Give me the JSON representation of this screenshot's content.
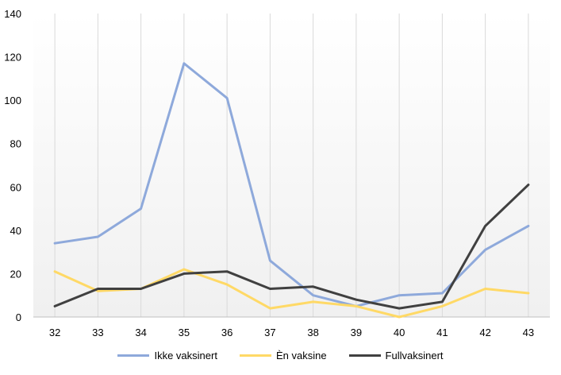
{
  "chart_data": {
    "type": "line",
    "categories": [
      "32",
      "33",
      "34",
      "35",
      "36",
      "37",
      "38",
      "39",
      "40",
      "41",
      "42",
      "43"
    ],
    "ylim": [
      0,
      140
    ],
    "yticks": [
      0,
      20,
      40,
      60,
      80,
      100,
      120,
      140
    ],
    "grid": "vertical lines at categories",
    "legend_position": "bottom",
    "series": [
      {
        "name": "Ikke vaksinert",
        "color": "#8EA9DB",
        "values": [
          34,
          37,
          50,
          117,
          101,
          26,
          10,
          5,
          10,
          11,
          31,
          42
        ]
      },
      {
        "name": "Èn vaksine",
        "color": "#FFD966",
        "values": [
          21,
          12,
          13,
          22,
          15,
          4,
          7,
          5,
          0,
          5,
          13,
          11
        ]
      },
      {
        "name": "Fullvaksinert",
        "color": "#404040",
        "values": [
          5,
          13,
          13,
          20,
          21,
          13,
          14,
          8,
          4,
          7,
          42,
          61
        ]
      }
    ]
  }
}
